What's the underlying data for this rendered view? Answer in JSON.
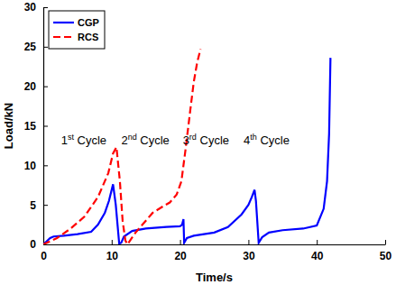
{
  "chart_data": {
    "type": "line",
    "x_label": "Time/s",
    "y_label": "Load/kN",
    "xlim": [
      0,
      50
    ],
    "xticks": [
      0,
      10,
      20,
      30,
      40,
      50
    ],
    "ylim": [
      0,
      30
    ],
    "yticks": [
      0,
      5,
      10,
      15,
      20,
      25,
      30
    ],
    "grid": false,
    "legend": "upper left",
    "series": [
      {
        "name": "CGP",
        "color": "#0000ff",
        "line_style": "solid",
        "x": [
          0,
          0.5,
          1,
          1.5,
          3,
          5,
          7,
          8,
          9,
          9.6,
          10.2,
          10.6,
          11.1,
          11.4,
          11.8,
          13,
          15,
          18,
          20,
          20.3,
          20.5,
          20.6,
          21,
          22,
          25,
          27,
          29,
          30,
          30.5,
          30.9,
          31.1,
          31.5,
          32,
          33,
          35,
          38,
          40,
          41,
          41.5,
          41.8,
          42
        ],
        "values": [
          0,
          0.4,
          0.8,
          1.0,
          1.1,
          1.3,
          1.6,
          2.5,
          4.0,
          5.5,
          7.6,
          5.0,
          0.1,
          0.2,
          1.0,
          1.7,
          2.0,
          2.2,
          2.3,
          2.5,
          3.2,
          0.2,
          0.8,
          1.1,
          1.5,
          2.2,
          3.8,
          5.0,
          6.0,
          6.9,
          5.5,
          0.2,
          0.9,
          1.5,
          1.8,
          2.0,
          2.4,
          4.5,
          8.0,
          14.0,
          23.6
        ]
      },
      {
        "name": "RCS",
        "color": "#ff0000",
        "line_style": "dashed",
        "x": [
          0,
          2,
          4,
          6,
          8,
          9.5,
          10.2,
          10.7,
          11.2,
          11.6,
          12,
          12.3,
          12.7,
          13.5,
          14.5,
          16,
          17.5,
          18.5,
          19.5,
          20.2,
          20.8,
          21.5,
          22,
          22.5,
          23
        ],
        "values": [
          0,
          0.8,
          2.0,
          3.5,
          6.0,
          9.0,
          11.5,
          12.3,
          8.0,
          3.0,
          0.5,
          0,
          0.5,
          1.5,
          2.5,
          4.0,
          4.8,
          5.3,
          6.3,
          8.0,
          12.0,
          17.0,
          20.5,
          23.0,
          24.7
        ]
      }
    ],
    "annotations": [
      {
        "text": "1st Cycle",
        "x": 2.6,
        "y": 12.7
      },
      {
        "text": "2nd Cycle",
        "x": 11.4,
        "y": 12.7
      },
      {
        "text": "3rd Cycle",
        "x": 20.4,
        "y": 12.7
      },
      {
        "text": "4th Cycle",
        "x": 29.3,
        "y": 12.7
      }
    ]
  }
}
